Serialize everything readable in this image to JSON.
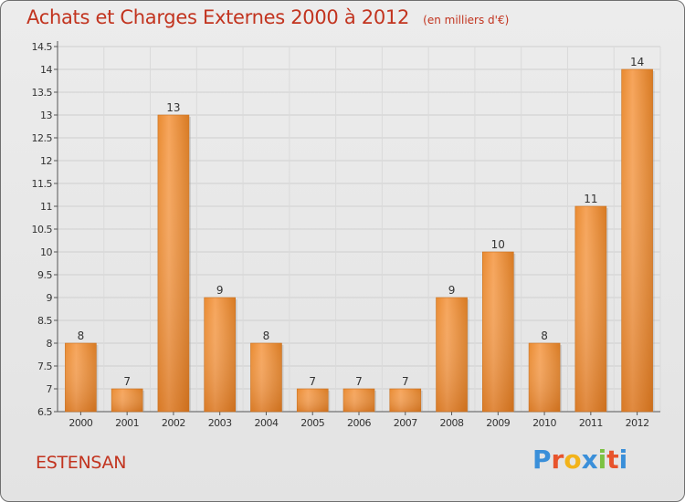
{
  "chart_data": {
    "type": "bar",
    "title": "Achats et Charges Externes 2000 à 2012",
    "subtitle": "(en milliers d'€)",
    "categories": [
      "2000",
      "2001",
      "2002",
      "2003",
      "2004",
      "2005",
      "2006",
      "2007",
      "2008",
      "2009",
      "2010",
      "2011",
      "2012"
    ],
    "values": [
      8,
      7,
      13,
      9,
      8,
      7,
      7,
      7,
      9,
      10,
      8,
      11,
      14
    ],
    "ylim": [
      6.5,
      14.5
    ],
    "yticks": [
      "6.5",
      "7",
      "7.5",
      "8",
      "8.5",
      "9",
      "9.5",
      "10",
      "10.5",
      "11",
      "11.5",
      "12",
      "12.5",
      "13",
      "13.5",
      "14",
      "14.5"
    ],
    "grid": true,
    "bar_color": "#f0923a"
  },
  "footer": {
    "commune": "ESTENSAN",
    "brand": "Proxiti"
  },
  "brand_colors": [
    "#3a8fd9",
    "#e8542c",
    "#f2b31a",
    "#3a8fd9",
    "#7cc242",
    "#e8542c",
    "#3a8fd9"
  ]
}
